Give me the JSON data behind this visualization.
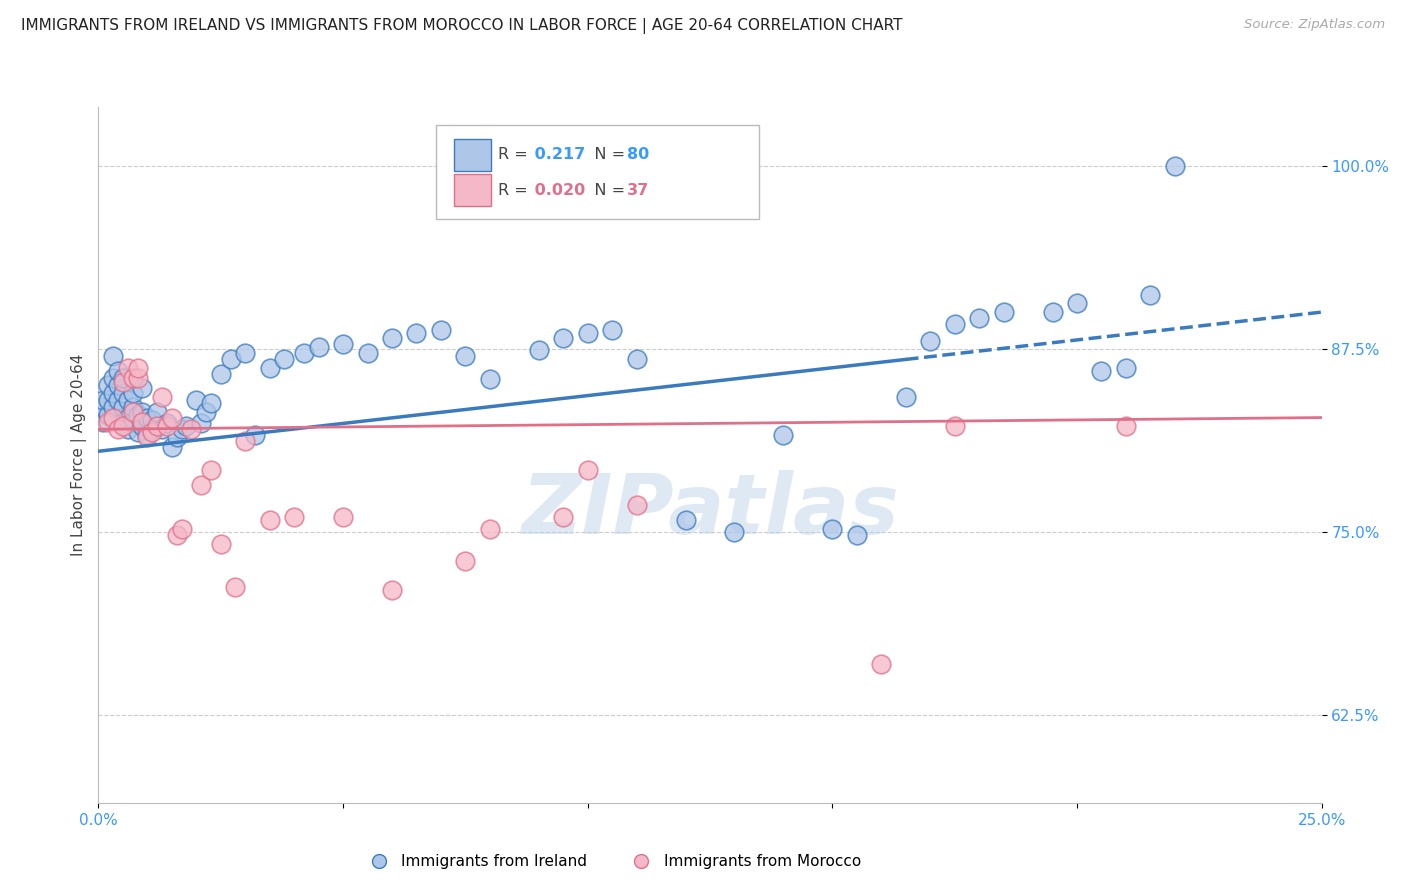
{
  "title": "IMMIGRANTS FROM IRELAND VS IMMIGRANTS FROM MOROCCO IN LABOR FORCE | AGE 20-64 CORRELATION CHART",
  "source": "Source: ZipAtlas.com",
  "ylabel_label": "In Labor Force | Age 20-64",
  "xlim": [
    0.0,
    0.25
  ],
  "ylim": [
    0.565,
    1.04
  ],
  "xticks": [
    0.0,
    0.05,
    0.1,
    0.15,
    0.2,
    0.25
  ],
  "xticklabels": [
    "0.0%",
    "",
    "",
    "",
    "",
    "25.0%"
  ],
  "yticks": [
    0.625,
    0.75,
    0.875,
    1.0
  ],
  "yticklabels": [
    "62.5%",
    "75.0%",
    "87.5%",
    "100.0%"
  ],
  "ireland_color": "#aec6e8",
  "ireland_edge": "#3a7bbf",
  "morocco_color": "#f4b8c8",
  "morocco_edge": "#e0708a",
  "ireland_R": 0.217,
  "ireland_N": 80,
  "morocco_R": 0.02,
  "morocco_N": 37,
  "ireland_trend_x0": 0.0,
  "ireland_trend_x1": 0.25,
  "ireland_trend_y0": 0.805,
  "ireland_trend_y1": 0.9,
  "ireland_dashed_split": 0.165,
  "morocco_trend_x0": 0.0,
  "morocco_trend_x1": 0.25,
  "morocco_trend_y0": 0.82,
  "morocco_trend_y1": 0.828,
  "watermark": "ZIPatlas",
  "background": "#ffffff",
  "grid_color": "#cccccc",
  "ireland_x": [
    0.001,
    0.001,
    0.001,
    0.002,
    0.002,
    0.002,
    0.003,
    0.003,
    0.003,
    0.003,
    0.004,
    0.004,
    0.004,
    0.005,
    0.005,
    0.005,
    0.005,
    0.006,
    0.006,
    0.006,
    0.007,
    0.007,
    0.007,
    0.008,
    0.008,
    0.009,
    0.009,
    0.009,
    0.01,
    0.01,
    0.011,
    0.011,
    0.012,
    0.012,
    0.013,
    0.014,
    0.015,
    0.016,
    0.017,
    0.018,
    0.02,
    0.021,
    0.022,
    0.023,
    0.025,
    0.027,
    0.03,
    0.032,
    0.035,
    0.038,
    0.042,
    0.045,
    0.05,
    0.055,
    0.06,
    0.065,
    0.07,
    0.075,
    0.08,
    0.09,
    0.095,
    0.1,
    0.105,
    0.11,
    0.12,
    0.13,
    0.14,
    0.15,
    0.155,
    0.165,
    0.17,
    0.175,
    0.18,
    0.185,
    0.195,
    0.2,
    0.205,
    0.21,
    0.215,
    0.22
  ],
  "ireland_y": [
    0.825,
    0.835,
    0.84,
    0.83,
    0.84,
    0.85,
    0.835,
    0.845,
    0.855,
    0.87,
    0.84,
    0.85,
    0.86,
    0.825,
    0.835,
    0.845,
    0.855,
    0.82,
    0.828,
    0.84,
    0.825,
    0.835,
    0.845,
    0.818,
    0.83,
    0.822,
    0.832,
    0.848,
    0.816,
    0.828,
    0.82,
    0.826,
    0.822,
    0.832,
    0.82,
    0.824,
    0.808,
    0.815,
    0.82,
    0.822,
    0.84,
    0.824,
    0.832,
    0.838,
    0.858,
    0.868,
    0.872,
    0.816,
    0.862,
    0.868,
    0.872,
    0.876,
    0.878,
    0.872,
    0.882,
    0.886,
    0.888,
    0.87,
    0.854,
    0.874,
    0.882,
    0.886,
    0.888,
    0.868,
    0.758,
    0.75,
    0.816,
    0.752,
    0.748,
    0.842,
    0.88,
    0.892,
    0.896,
    0.9,
    0.9,
    0.906,
    0.86,
    0.862,
    0.912,
    1.0
  ],
  "morocco_x": [
    0.002,
    0.003,
    0.004,
    0.005,
    0.005,
    0.006,
    0.007,
    0.007,
    0.008,
    0.008,
    0.009,
    0.01,
    0.011,
    0.012,
    0.013,
    0.014,
    0.015,
    0.016,
    0.017,
    0.019,
    0.021,
    0.023,
    0.025,
    0.028,
    0.03,
    0.035,
    0.04,
    0.05,
    0.06,
    0.075,
    0.08,
    0.095,
    0.1,
    0.11,
    0.16,
    0.175,
    0.21
  ],
  "morocco_y": [
    0.825,
    0.828,
    0.82,
    0.822,
    0.852,
    0.862,
    0.832,
    0.855,
    0.855,
    0.862,
    0.825,
    0.815,
    0.818,
    0.822,
    0.842,
    0.822,
    0.828,
    0.748,
    0.752,
    0.82,
    0.782,
    0.792,
    0.742,
    0.712,
    0.812,
    0.758,
    0.76,
    0.76,
    0.71,
    0.73,
    0.752,
    0.76,
    0.792,
    0.768,
    0.66,
    0.822,
    0.822
  ]
}
